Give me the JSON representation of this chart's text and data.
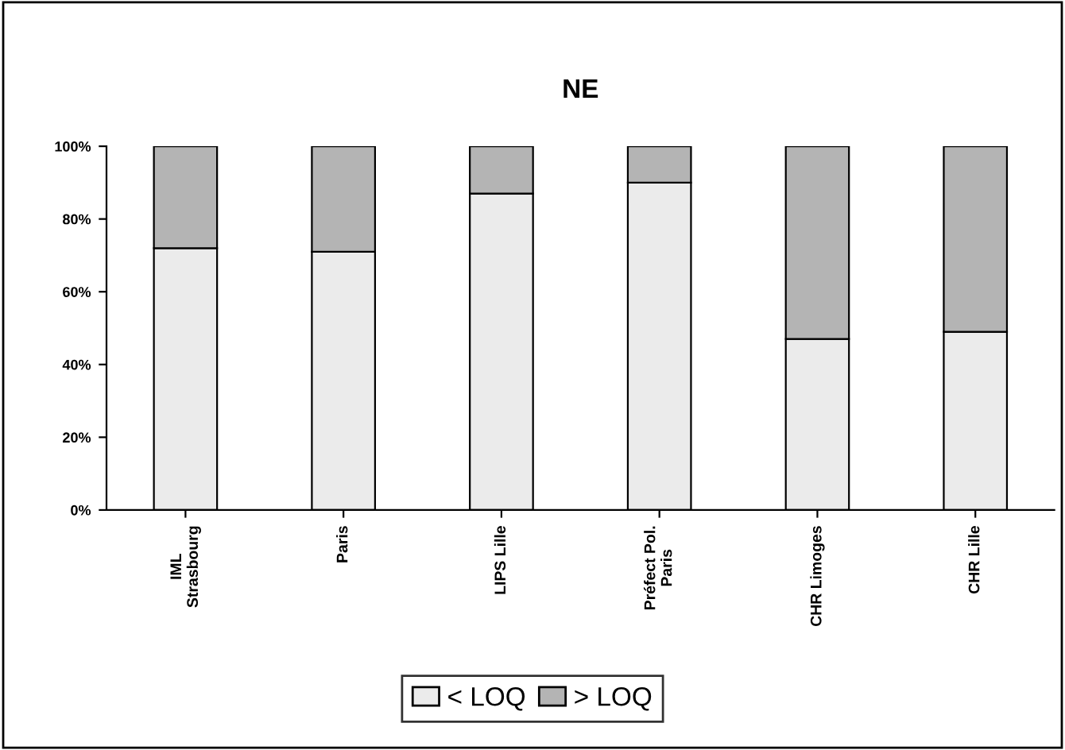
{
  "chart_data": {
    "type": "bar",
    "title": "NE",
    "stacked": true,
    "categories": [
      "IML\nStrasbourg",
      "Paris",
      "LIPS Lille",
      "Préfect Pol.\nParis",
      "CHR Limoges",
      "CHR Lille"
    ],
    "series": [
      {
        "name": "< LOQ",
        "color": "#ebebeb",
        "values": [
          72,
          71,
          87,
          90,
          47,
          49
        ]
      },
      {
        "name": "> LOQ",
        "color": "#b4b4b4",
        "values": [
          28,
          29,
          13,
          10,
          53,
          51
        ]
      }
    ],
    "ylim": [
      0,
      100
    ],
    "yticks": [
      {
        "value": 0,
        "label": "0%"
      },
      {
        "value": 20,
        "label": "20%"
      },
      {
        "value": 40,
        "label": "40%"
      },
      {
        "value": 60,
        "label": "60%"
      },
      {
        "value": 80,
        "label": "80%"
      },
      {
        "value": 100,
        "label": "100%"
      }
    ],
    "grid": false,
    "legend": "bottom"
  }
}
